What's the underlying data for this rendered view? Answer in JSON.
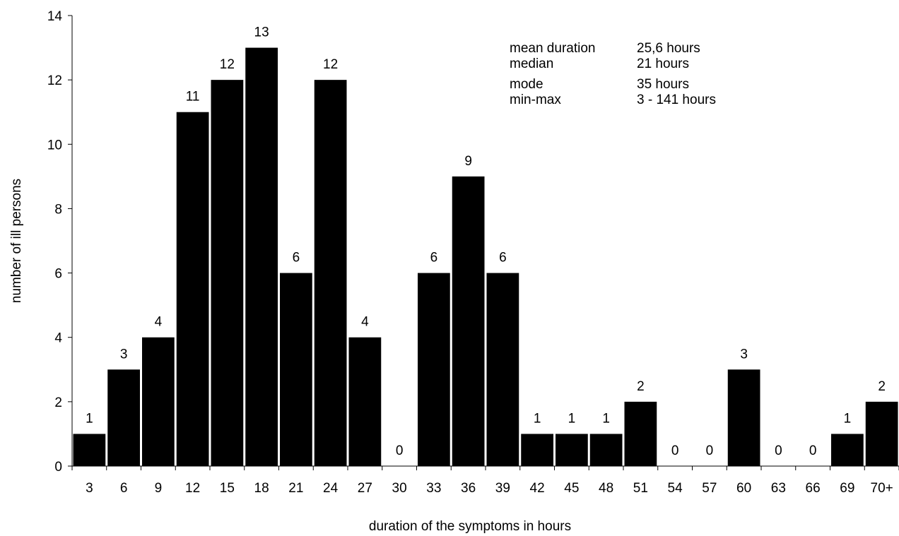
{
  "chart_data": {
    "type": "bar",
    "title": "",
    "xlabel": "duration of the symptoms in hours",
    "ylabel": "number of ill persons",
    "ylim": [
      0,
      14
    ],
    "yticks": [
      "0",
      "2",
      "4",
      "6",
      "8",
      "10",
      "12",
      "14"
    ],
    "categories": [
      "3",
      "6",
      "9",
      "12",
      "15",
      "18",
      "21",
      "24",
      "27",
      "30",
      "33",
      "36",
      "39",
      "42",
      "45",
      "48",
      "51",
      "54",
      "57",
      "60",
      "63",
      "66",
      "69",
      "70+"
    ],
    "values": [
      1,
      3,
      4,
      11,
      12,
      13,
      6,
      12,
      4,
      0,
      6,
      9,
      6,
      1,
      1,
      1,
      2,
      0,
      0,
      3,
      0,
      0,
      1,
      2
    ],
    "bar_color": "#000000",
    "grid": false,
    "legend": false
  },
  "stats": [
    {
      "label": "mean duration",
      "value": "25,6 hours"
    },
    {
      "label": "median",
      "value": "21 hours"
    },
    {
      "label": "mode",
      "value": "35 hours"
    },
    {
      "label": "min-max",
      "value": "3 - 141 hours"
    }
  ]
}
